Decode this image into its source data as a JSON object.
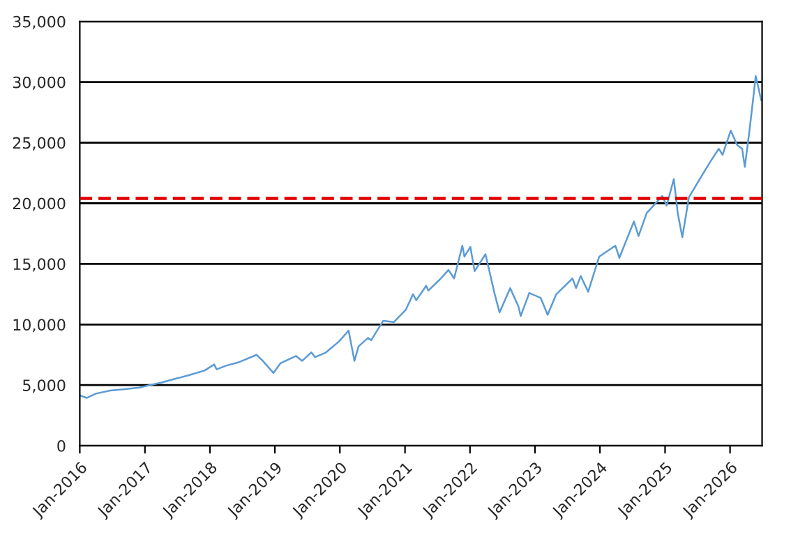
{
  "chart_data": {
    "type": "line",
    "x": [
      "2016-01-01",
      "2016-02-10",
      "2016-04-01",
      "2016-06-20",
      "2016-09-01",
      "2016-12-01",
      "2017-01-15",
      "2017-04-01",
      "2017-06-15",
      "2017-09-01",
      "2017-12-01",
      "2018-01-25",
      "2018-02-08",
      "2018-04-01",
      "2018-06-15",
      "2018-09-20",
      "2018-10-25",
      "2018-12-24",
      "2019-02-01",
      "2019-04-30",
      "2019-06-03",
      "2019-07-25",
      "2019-08-15",
      "2019-10-15",
      "2019-12-27",
      "2020-02-19",
      "2020-03-23",
      "2020-04-15",
      "2020-06-08",
      "2020-06-25",
      "2020-08-31",
      "2020-10-30",
      "2021-01-05",
      "2021-02-15",
      "2021-03-05",
      "2021-04-30",
      "2021-05-12",
      "2021-07-15",
      "2021-09-02",
      "2021-10-04",
      "2021-11-19",
      "2021-12-01",
      "2022-01-03",
      "2022-01-27",
      "2022-03-29",
      "2022-05-20",
      "2022-06-16",
      "2022-08-15",
      "2022-09-30",
      "2022-10-13",
      "2022-11-30",
      "2023-02-02",
      "2023-03-13",
      "2023-05-01",
      "2023-07-31",
      "2023-08-20",
      "2023-09-15",
      "2023-10-27",
      "2023-12-28",
      "2024-03-28",
      "2024-04-19",
      "2024-07-10",
      "2024-08-05",
      "2024-09-20",
      "2024-12-16",
      "2025-01-10",
      "2025-02-19",
      "2025-03-13",
      "2025-04-08",
      "2025-05-15",
      "2025-07-15",
      "2025-09-15",
      "2025-10-30",
      "2025-11-20",
      "2026-01-05",
      "2026-02-10",
      "2026-03-10",
      "2026-03-25",
      "2026-04-20",
      "2026-05-10",
      "2026-05-25",
      "2026-06-10",
      "2026-06-25"
    ],
    "series": [
      {
        "color": "#5b9bd5",
        "values": [
          4150,
          3950,
          4300,
          4550,
          4650,
          4800,
          4950,
          5200,
          5500,
          5800,
          6200,
          6700,
          6300,
          6600,
          6900,
          7500,
          7000,
          6000,
          6800,
          7400,
          7000,
          7700,
          7300,
          7700,
          8600,
          9500,
          7000,
          8200,
          8900,
          8700,
          10300,
          10200,
          11200,
          12500,
          12000,
          13200,
          12800,
          13700,
          14500,
          13800,
          16500,
          15600,
          16400,
          14400,
          15800,
          12500,
          11000,
          13000,
          11500,
          10700,
          12600,
          12200,
          10800,
          12500,
          13800,
          13000,
          14000,
          12700,
          15600,
          16500,
          15500,
          18500,
          17300,
          19200,
          20600,
          19800,
          22000,
          19200,
          17200,
          20500,
          22000,
          23500,
          24500,
          24000,
          26000,
          24800,
          24500,
          23000,
          26000,
          28500,
          30500,
          29500,
          28500
        ]
      }
    ],
    "xlim": [
      "2016-01-01",
      "2026-06-30"
    ],
    "xticks": [
      {
        "value": "2016-01-01",
        "label": "Jan-2016"
      },
      {
        "value": "2017-01-01",
        "label": "Jan-2017"
      },
      {
        "value": "2018-01-01",
        "label": "Jan-2018"
      },
      {
        "value": "2019-01-01",
        "label": "Jan-2019"
      },
      {
        "value": "2020-01-01",
        "label": "Jan-2020"
      },
      {
        "value": "2021-01-01",
        "label": "Jan-2021"
      },
      {
        "value": "2022-01-01",
        "label": "Jan-2022"
      },
      {
        "value": "2023-01-01",
        "label": "Jan-2023"
      },
      {
        "value": "2024-01-01",
        "label": "Jan-2024"
      },
      {
        "value": "2025-01-01",
        "label": "Jan-2025"
      },
      {
        "value": "2026-01-01",
        "label": "Jan-2026"
      }
    ],
    "ylim": [
      0,
      35000
    ],
    "yticks": [
      {
        "value": 0,
        "label": "0"
      },
      {
        "value": 5000,
        "label": "5,000"
      },
      {
        "value": 10000,
        "label": "10,000"
      },
      {
        "value": 15000,
        "label": "15,000"
      },
      {
        "value": 20000,
        "label": "20,000"
      },
      {
        "value": 25000,
        "label": "25,000"
      },
      {
        "value": 30000,
        "label": "30,000"
      },
      {
        "value": 35000,
        "label": "35,000"
      }
    ],
    "grid": "y",
    "ref_lines": [
      {
        "axis": "y",
        "value": 20400,
        "color": "#e00000",
        "line_style": "dashed"
      }
    ]
  }
}
